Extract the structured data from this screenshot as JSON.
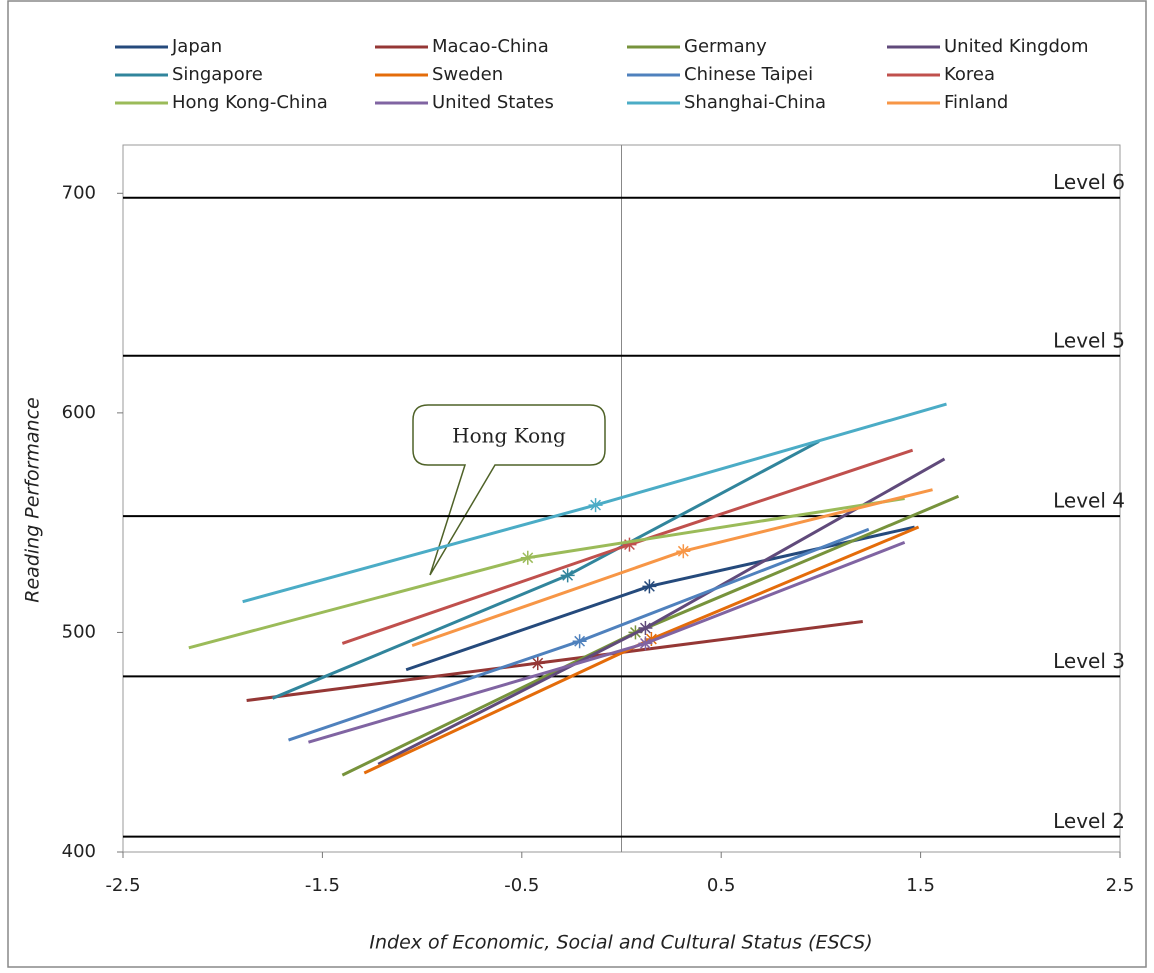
{
  "chart_data": {
    "type": "line",
    "x_label": "Index of Economic, Social and Cultural Status (ESCS)",
    "y_label": "Reading Performance",
    "xlim": [
      -2.5,
      2.5
    ],
    "xticks": [
      -2.5,
      -1.5,
      -0.5,
      0.5,
      1.5,
      2.5
    ],
    "ylim": [
      400,
      722
    ],
    "yticks": [
      400,
      500,
      600,
      700
    ],
    "reference_x": 0,
    "levels": [
      {
        "label": "Level 2",
        "value": 407
      },
      {
        "label": "Level 3",
        "value": 480
      },
      {
        "label": "Level 4",
        "value": 553
      },
      {
        "label": "Level 5",
        "value": 626
      },
      {
        "label": "Level 6",
        "value": 698
      }
    ],
    "annotation": "Hong Kong",
    "series": [
      {
        "name": "Japan",
        "color": "#254A7C",
        "x": [
          -1.08,
          0.14,
          1.47
        ],
        "values": [
          483,
          521,
          548
        ],
        "mean_x": 0.14,
        "mean_value": 521
      },
      {
        "name": "Macao-China",
        "color": "#953735",
        "x": [
          -1.88,
          -0.42,
          1.21
        ],
        "values": [
          469,
          486,
          505
        ],
        "mean_x": -0.42,
        "mean_value": 486
      },
      {
        "name": "Germany",
        "color": "#77933C",
        "x": [
          -1.4,
          0.07,
          1.69
        ],
        "values": [
          435,
          500,
          562
        ],
        "mean_x": 0.07,
        "mean_value": 500
      },
      {
        "name": "United Kingdom",
        "color": "#604A7B",
        "x": [
          -1.22,
          0.12,
          1.62
        ],
        "values": [
          440,
          502,
          579
        ],
        "mean_x": 0.12,
        "mean_value": 502
      },
      {
        "name": "Singapore",
        "color": "#31859C",
        "x": [
          -1.75,
          -0.27,
          0.99
        ],
        "values": [
          470,
          526,
          587
        ],
        "mean_x": -0.27,
        "mean_value": 526
      },
      {
        "name": "Sweden",
        "color": "#E46C0A",
        "x": [
          -1.29,
          0.15,
          1.49
        ],
        "values": [
          436,
          497,
          548
        ],
        "mean_x": 0.15,
        "mean_value": 497
      },
      {
        "name": "Chinese Taipei",
        "color": "#4F81BD",
        "x": [
          -1.67,
          -0.21,
          1.24
        ],
        "values": [
          451,
          496,
          547
        ],
        "mean_x": -0.21,
        "mean_value": 496
      },
      {
        "name": "Korea",
        "color": "#C0504D",
        "x": [
          -1.4,
          0.04,
          1.46
        ],
        "values": [
          495,
          540,
          583
        ],
        "mean_x": 0.04,
        "mean_value": 540
      },
      {
        "name": "Hong Kong-China",
        "color": "#9BBB59",
        "x": [
          -2.17,
          -0.47,
          1.42
        ],
        "values": [
          493,
          534,
          561
        ],
        "mean_x": -0.47,
        "mean_value": 534
      },
      {
        "name": "United States",
        "color": "#8064A2",
        "x": [
          -1.57,
          0.12,
          1.42
        ],
        "values": [
          450,
          495,
          541
        ],
        "mean_x": 0.12,
        "mean_value": 495
      },
      {
        "name": "Shanghai-China",
        "color": "#4BACC6",
        "x": [
          -1.9,
          -0.13,
          1.63
        ],
        "values": [
          514,
          558,
          604
        ],
        "mean_x": -0.13,
        "mean_value": 558
      },
      {
        "name": "Finland",
        "color": "#F79646",
        "x": [
          -1.05,
          0.31,
          1.56
        ],
        "values": [
          494,
          537,
          565
        ],
        "mean_x": 0.31,
        "mean_value": 537
      }
    ]
  }
}
